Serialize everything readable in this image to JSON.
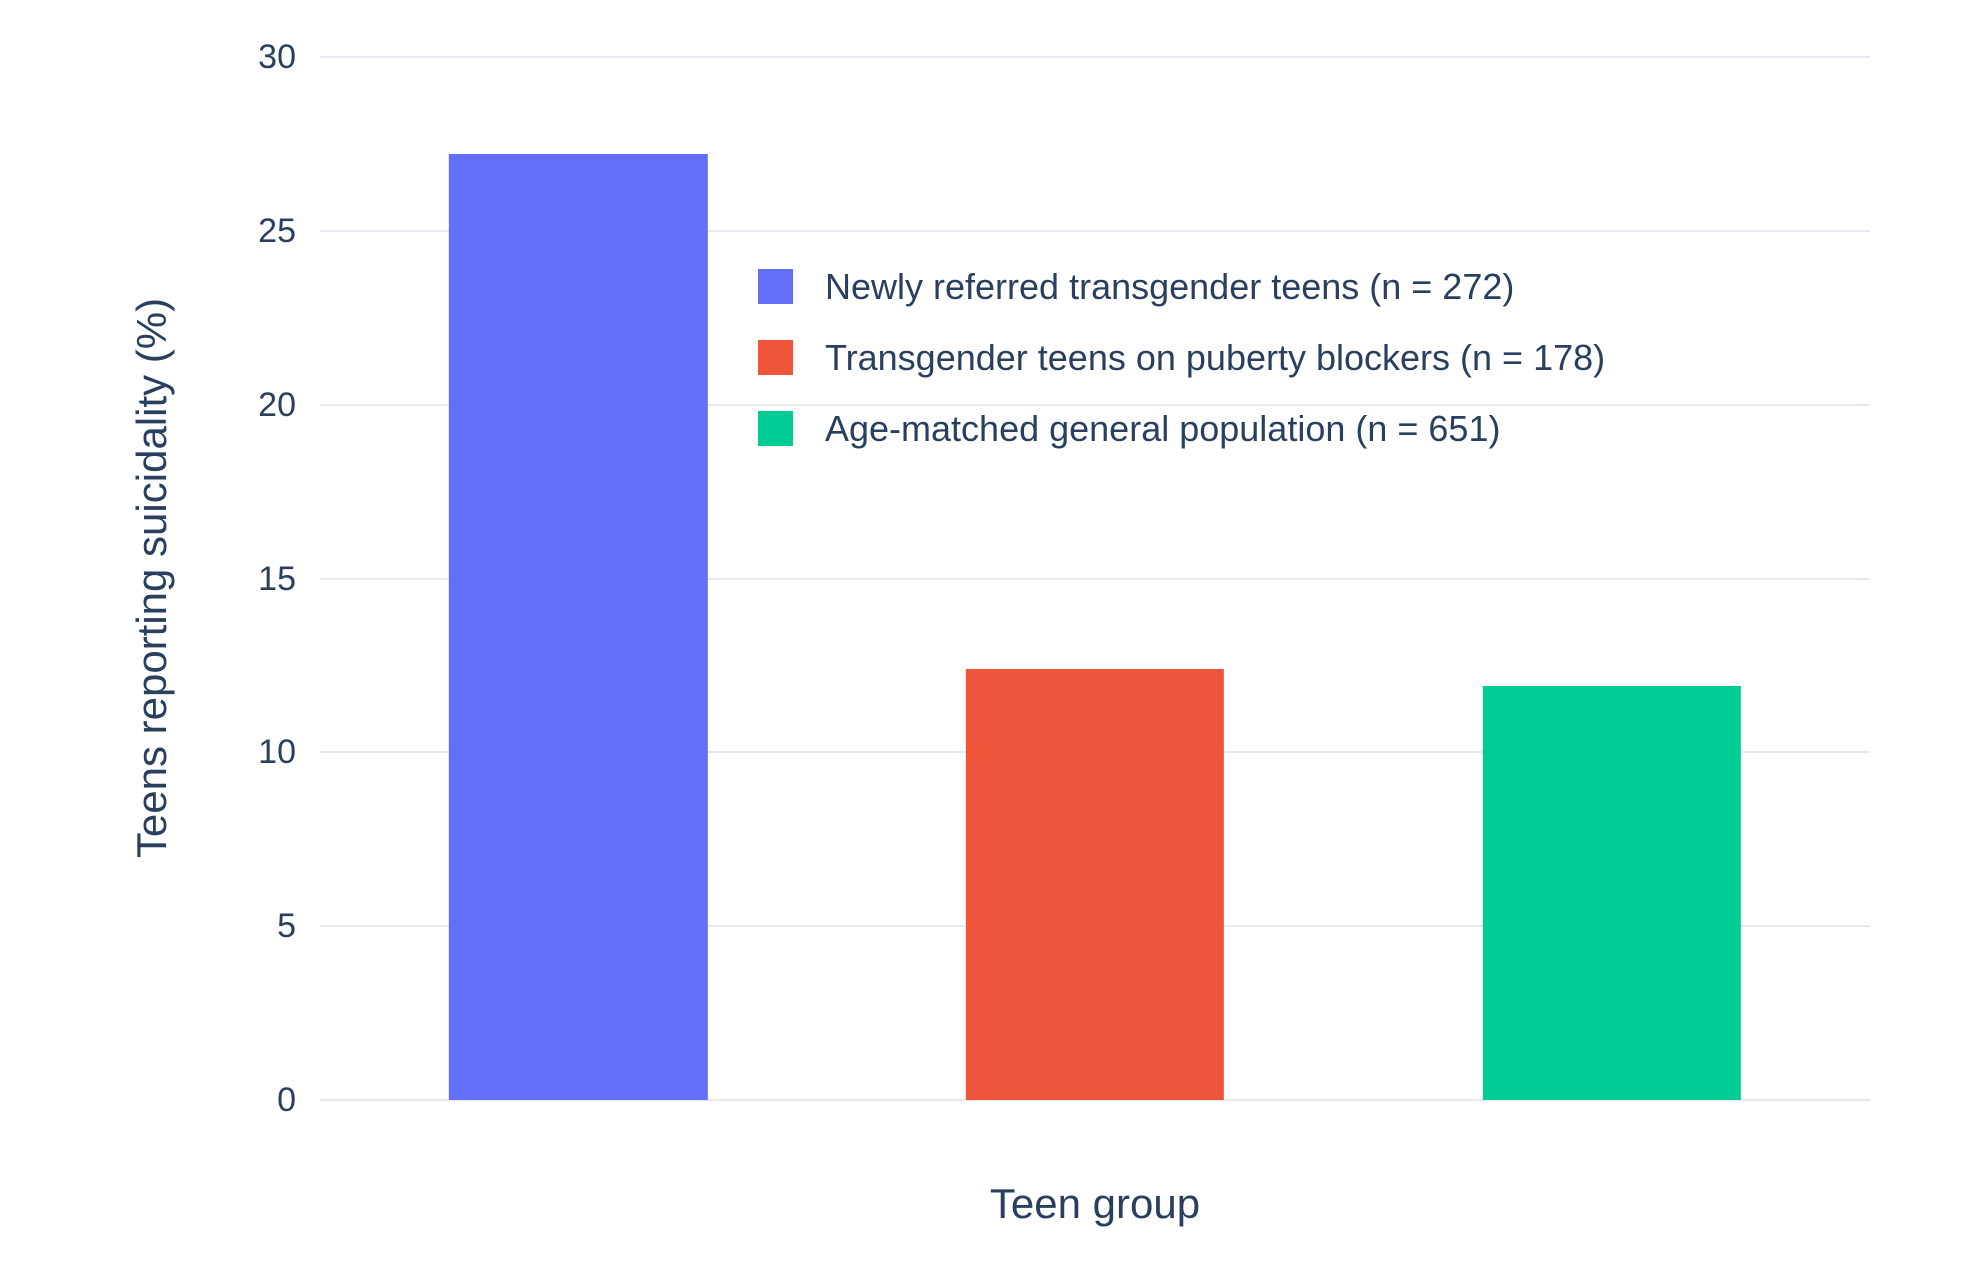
{
  "chart_data": {
    "type": "bar",
    "xlabel": "Teen group",
    "ylabel": "Teens reporting suicidality (%)",
    "ylim": [
      0,
      30
    ],
    "yticks": [
      0,
      5,
      10,
      15,
      20,
      25,
      30
    ],
    "grid": true,
    "legend_position": "inside-top-center",
    "categories": [
      "Newly referred transgender teens (n = 272)",
      "Transgender teens on puberty blockers (n = 178)",
      "Age-matched general population (n = 651)"
    ],
    "series": [
      {
        "name": "Newly referred transgender teens (n = 272)",
        "value": 27.2,
        "color": "#636EFA"
      },
      {
        "name": "Transgender teens on puberty blockers (n = 178)",
        "value": 12.4,
        "color": "#EF553B"
      },
      {
        "name": "Age-matched general population (n = 651)",
        "value": 11.9,
        "color": "#00CC96"
      }
    ]
  },
  "colors": {
    "background": "#FFFFFF",
    "grid": "#E5E9F0",
    "text": "#2A3F5F"
  }
}
